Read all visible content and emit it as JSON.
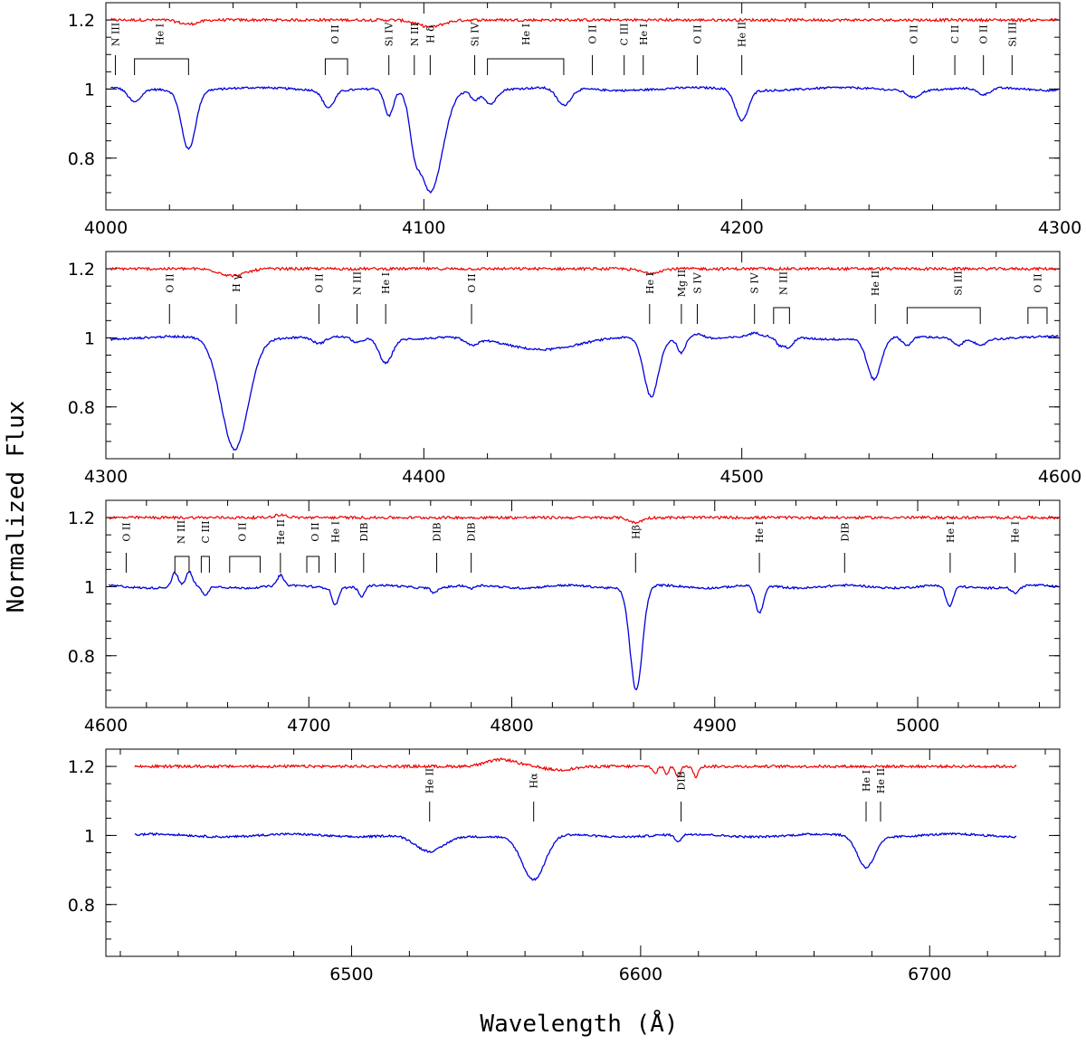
{
  "figure": {
    "ylabel": "Normalized Flux",
    "xlabel": "Wavelength (Å)",
    "colors": {
      "observed": "#0000dd",
      "residual": "#ee0000",
      "frame": "#000000"
    }
  },
  "chart_data": [
    {
      "type": "line",
      "title": "",
      "xlim": [
        4000,
        4300
      ],
      "ylim": [
        0.65,
        1.25
      ],
      "xticks": [
        4000,
        4100,
        4200,
        4300
      ],
      "yticks": [
        0.8,
        1,
        1.2
      ],
      "ytick_labels": [
        "0.8",
        "1",
        "1.2"
      ],
      "series": [
        {
          "role": "observed",
          "continuum": 1.0,
          "lines": [
            {
              "x": 4009,
              "depth": 0.04,
              "width": 2
            },
            {
              "x": 4026,
              "depth": 0.17,
              "width": 2.2
            },
            {
              "x": 4070,
              "depth": 0.05,
              "width": 1.8
            },
            {
              "x": 4089,
              "depth": 0.08,
              "width": 1.4
            },
            {
              "x": 4097,
              "depth": 0.08,
              "width": 1.4
            },
            {
              "x": 4102,
              "depth": 0.3,
              "width": 3.8
            },
            {
              "x": 4116,
              "depth": 0.03,
              "width": 1.2
            },
            {
              "x": 4121,
              "depth": 0.04,
              "width": 1.8
            },
            {
              "x": 4144,
              "depth": 0.05,
              "width": 2.2
            },
            {
              "x": 4200,
              "depth": 0.09,
              "width": 2.0
            },
            {
              "x": 4254,
              "depth": 0.02,
              "width": 2
            },
            {
              "x": 4276,
              "depth": 0.02,
              "width": 2
            }
          ]
        },
        {
          "role": "residual",
          "continuum": 1.2,
          "features": [
            {
              "x": 4026,
              "amp": -0.012,
              "width": 3
            },
            {
              "x": 4102,
              "amp": -0.02,
              "width": 4
            }
          ]
        }
      ],
      "annotations": [
        {
          "label": "N III",
          "x": 4003
        },
        {
          "label": "He I",
          "x": 4017,
          "bracket": [
            4009,
            4026
          ]
        },
        {
          "label": "O II",
          "x": 4072,
          "bracket": [
            4069,
            4076
          ]
        },
        {
          "label": "Si IV",
          "x": 4089
        },
        {
          "label": "N III",
          "x": 4097
        },
        {
          "label": "H δ",
          "x": 4102
        },
        {
          "label": "Si IV",
          "x": 4116
        },
        {
          "label": "He I",
          "x": 4132,
          "bracket": [
            4120,
            4144
          ]
        },
        {
          "label": "O II",
          "x": 4153
        },
        {
          "label": "C III",
          "x": 4163
        },
        {
          "label": "He I",
          "x": 4169
        },
        {
          "label": "O II",
          "x": 4186
        },
        {
          "label": "He II",
          "x": 4200
        },
        {
          "label": "O II",
          "x": 4254
        },
        {
          "label": "C II",
          "x": 4267
        },
        {
          "label": "O II",
          "x": 4276
        },
        {
          "label": "Si III",
          "x": 4285
        }
      ]
    },
    {
      "type": "line",
      "title": "",
      "xlim": [
        4300,
        4600
      ],
      "ylim": [
        0.65,
        1.25
      ],
      "xticks": [
        4300,
        4400,
        4500,
        4600
      ],
      "yticks": [
        0.8,
        1,
        1.2
      ],
      "ytick_labels": [
        "0.8",
        "1",
        "1.2"
      ],
      "series": [
        {
          "role": "observed",
          "continuum": 1.0,
          "lines": [
            {
              "x": 4340.5,
              "depth": 0.32,
              "width": 4.2
            },
            {
              "x": 4367,
              "depth": 0.02,
              "width": 2
            },
            {
              "x": 4379,
              "depth": 0.015,
              "width": 1.5
            },
            {
              "x": 4388,
              "depth": 0.07,
              "width": 2
            },
            {
              "x": 4415,
              "depth": 0.02,
              "width": 2
            },
            {
              "x": 4437,
              "depth": 0.03,
              "width": 12
            },
            {
              "x": 4471.5,
              "depth": 0.17,
              "width": 2.3
            },
            {
              "x": 4481,
              "depth": 0.04,
              "width": 1.2
            },
            {
              "x": 4512,
              "depth": 0.025,
              "width": 1.2
            },
            {
              "x": 4514.9,
              "depth": 0.03,
              "width": 1.2
            },
            {
              "x": 4541.6,
              "depth": 0.12,
              "width": 2.2
            },
            {
              "x": 4552,
              "depth": 0.025,
              "width": 1.5
            },
            {
              "x": 4568,
              "depth": 0.02,
              "width": 1.5
            },
            {
              "x": 4575,
              "depth": 0.02,
              "width": 1.5
            }
          ],
          "emission": [
            {
              "x": 4486,
              "amp": 0.015,
              "width": 2
            },
            {
              "x": 4504,
              "amp": 0.01,
              "width": 2
            }
          ]
        },
        {
          "role": "residual",
          "continuum": 1.2,
          "features": [
            {
              "x": 4340,
              "amp": -0.02,
              "width": 4
            },
            {
              "x": 4471,
              "amp": -0.012,
              "width": 3
            }
          ]
        }
      ],
      "annotations": [
        {
          "label": "O II",
          "x": 4320
        },
        {
          "label": "H γ",
          "x": 4341
        },
        {
          "label": "O II",
          "x": 4367
        },
        {
          "label": "N III",
          "x": 4379
        },
        {
          "label": "He I",
          "x": 4388
        },
        {
          "label": "O II",
          "x": 4415
        },
        {
          "label": "He I",
          "x": 4471
        },
        {
          "label": "Mg II",
          "x": 4481
        },
        {
          "label": "S IV",
          "x": 4486
        },
        {
          "label": "S IV",
          "x": 4504
        },
        {
          "label": "N III",
          "x": 4513,
          "bracket": [
            4510,
            4515
          ]
        },
        {
          "label": "He II",
          "x": 4542
        },
        {
          "label": "Si III",
          "x": 4568,
          "bracket": [
            4552,
            4575
          ]
        },
        {
          "label": "O II",
          "x": 4593,
          "bracket": [
            4590,
            4596
          ]
        }
      ]
    },
    {
      "type": "line",
      "title": "",
      "xlim": [
        4600,
        5070
      ],
      "ylim": [
        0.65,
        1.25
      ],
      "xticks": [
        4600,
        4700,
        4800,
        4900,
        5000
      ],
      "yticks": [
        0.8,
        1,
        1.2
      ],
      "ytick_labels": [
        "0.8",
        "1",
        "1.2"
      ],
      "series": [
        {
          "role": "observed",
          "continuum": 1.0,
          "lines": [
            {
              "x": 4649,
              "depth": 0.03,
              "width": 1.5
            },
            {
              "x": 4713,
              "depth": 0.05,
              "width": 1.5
            },
            {
              "x": 4726,
              "depth": 0.03,
              "width": 1.5
            },
            {
              "x": 4762,
              "depth": 0.015,
              "width": 1.5
            },
            {
              "x": 4780,
              "depth": 0.01,
              "width": 1.5
            },
            {
              "x": 4861.3,
              "depth": 0.3,
              "width": 3.0
            },
            {
              "x": 4922,
              "depth": 0.08,
              "width": 2
            },
            {
              "x": 5015.7,
              "depth": 0.06,
              "width": 1.8
            },
            {
              "x": 5048,
              "depth": 0.02,
              "width": 2
            }
          ],
          "emission": [
            {
              "x": 4634,
              "amp": 0.04,
              "width": 1.5
            },
            {
              "x": 4641,
              "amp": 0.04,
              "width": 1.5
            },
            {
              "x": 4686,
              "amp": 0.03,
              "width": 1.5
            }
          ]
        },
        {
          "role": "residual",
          "continuum": 1.2,
          "features": [
            {
              "x": 4861,
              "amp": -0.015,
              "width": 3
            },
            {
              "x": 4686,
              "amp": 0.008,
              "width": 3
            }
          ]
        }
      ],
      "annotations": [
        {
          "label": "O II",
          "x": 4610
        },
        {
          "label": "N III",
          "x": 4637,
          "bracket": [
            4634,
            4641
          ]
        },
        {
          "label": "C III",
          "x": 4649,
          "bracket": [
            4647,
            4651
          ]
        },
        {
          "label": "O II",
          "x": 4667,
          "bracket": [
            4661,
            4676
          ]
        },
        {
          "label": "He II",
          "x": 4686
        },
        {
          "label": "O II",
          "x": 4703,
          "bracket": [
            4699,
            4705
          ]
        },
        {
          "label": "He I",
          "x": 4713
        },
        {
          "label": "DIB",
          "x": 4727
        },
        {
          "label": "DIB",
          "x": 4763
        },
        {
          "label": "DIB",
          "x": 4780
        },
        {
          "label": "Hβ",
          "x": 4861
        },
        {
          "label": "He I",
          "x": 4922
        },
        {
          "label": "DIB",
          "x": 4964
        },
        {
          "label": "He I",
          "x": 5016
        },
        {
          "label": "He I",
          "x": 5048
        }
      ]
    },
    {
      "type": "line",
      "title": "",
      "xlim": [
        6415,
        6745
      ],
      "ylim": [
        0.65,
        1.25
      ],
      "xticks": [
        6500,
        6600,
        6700
      ],
      "yticks": [
        0.8,
        1,
        1.2
      ],
      "ytick_labels": [
        "0.8",
        "1",
        "1.2"
      ],
      "series": [
        {
          "role": "observed",
          "continuum": 1.0,
          "lines": [
            {
              "x": 6527,
              "depth": 0.05,
              "width": 5
            },
            {
              "x": 6563,
              "depth": 0.13,
              "width": 4
            },
            {
              "x": 6613,
              "depth": 0.02,
              "width": 1.2
            },
            {
              "x": 6678,
              "depth": 0.09,
              "width": 3
            }
          ]
        },
        {
          "role": "residual",
          "continuum": 1.2,
          "features": [
            {
              "x": 6552,
              "amp": 0.02,
              "width": 5
            },
            {
              "x": 6572,
              "amp": -0.01,
              "width": 5
            },
            {
              "x": 6605,
              "amp": -0.02,
              "width": 0.8
            },
            {
              "x": 6609,
              "amp": -0.02,
              "width": 0.8
            },
            {
              "x": 6613,
              "amp": -0.03,
              "width": 0.8
            },
            {
              "x": 6619,
              "amp": -0.03,
              "width": 0.8
            }
          ]
        }
      ],
      "annotations": [
        {
          "label": "He II",
          "x": 6527
        },
        {
          "label": "Hα",
          "x": 6563
        },
        {
          "label": "DIB",
          "x": 6614
        },
        {
          "label": "He I",
          "x": 6678
        },
        {
          "label": "He II",
          "x": 6683
        }
      ]
    }
  ]
}
